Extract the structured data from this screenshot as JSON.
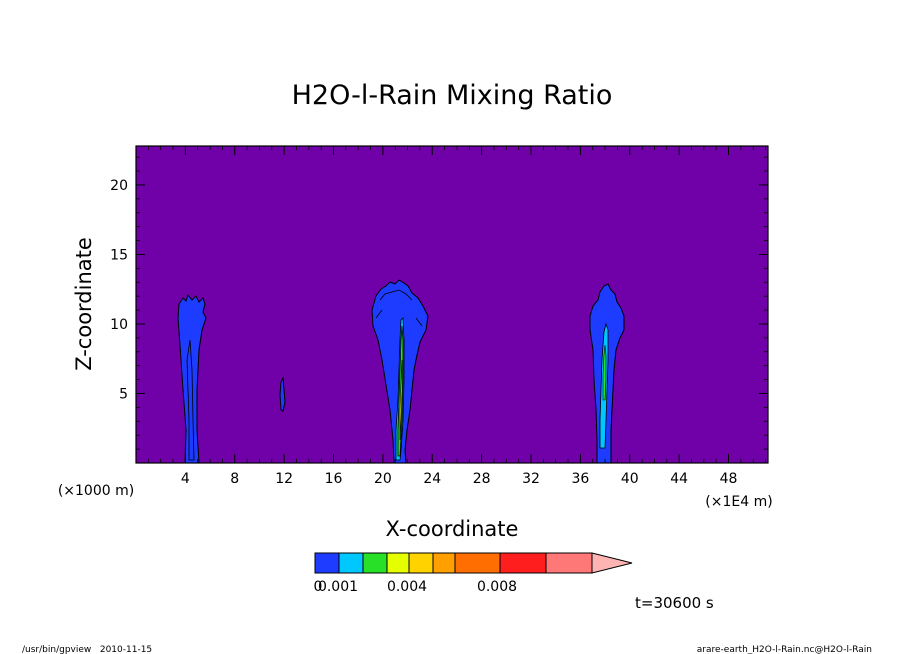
{
  "chart_data": {
    "type": "heatmap",
    "title": "H2O-l-Rain Mixing Ratio",
    "xlabel": "X-coordinate",
    "ylabel": "Z-coordinate",
    "x_unit_left": "(×1000 m)",
    "x_unit_right": "(×1E4 m)",
    "x_ticks": [
      "4",
      "8",
      "12",
      "16",
      "20",
      "24",
      "28",
      "32",
      "36",
      "40",
      "44",
      "48"
    ],
    "y_ticks": [
      "5",
      "10",
      "15",
      "20"
    ],
    "xlim": [
      0,
      51.2
    ],
    "ylim": [
      0,
      22.8
    ],
    "background_color": "#7000a8",
    "colorbar": {
      "labels": [
        "0",
        "0.001",
        "0.004",
        "0.008"
      ],
      "label_values": [
        0,
        0.001,
        0.004,
        0.008
      ],
      "colors": [
        "#1e3cff",
        "#00c8ff",
        "#28e028",
        "#e6ff00",
        "#ffd200",
        "#ffa000",
        "#ff6e00",
        "#ff1e1e",
        "#ff7878",
        "#ffb4b4"
      ]
    },
    "time_label": "t=30600 s",
    "features": [
      {
        "name": "cloud-left",
        "x_center": 4.5,
        "z_top": 11.8,
        "max_level": 1
      },
      {
        "name": "cloud-small",
        "x_center": 12.0,
        "z_top": 6.0,
        "max_level": 1
      },
      {
        "name": "cloud-center",
        "x_center": 21.6,
        "z_top": 13.2,
        "max_level": 4
      },
      {
        "name": "cloud-right",
        "x_center": 38.0,
        "z_top": 12.8,
        "max_level": 3
      }
    ]
  },
  "footer": {
    "left": "/usr/bin/gpview   2010-11-15",
    "right": "arare-earth_H2O-l-Rain.nc@H2O-l-Rain"
  }
}
